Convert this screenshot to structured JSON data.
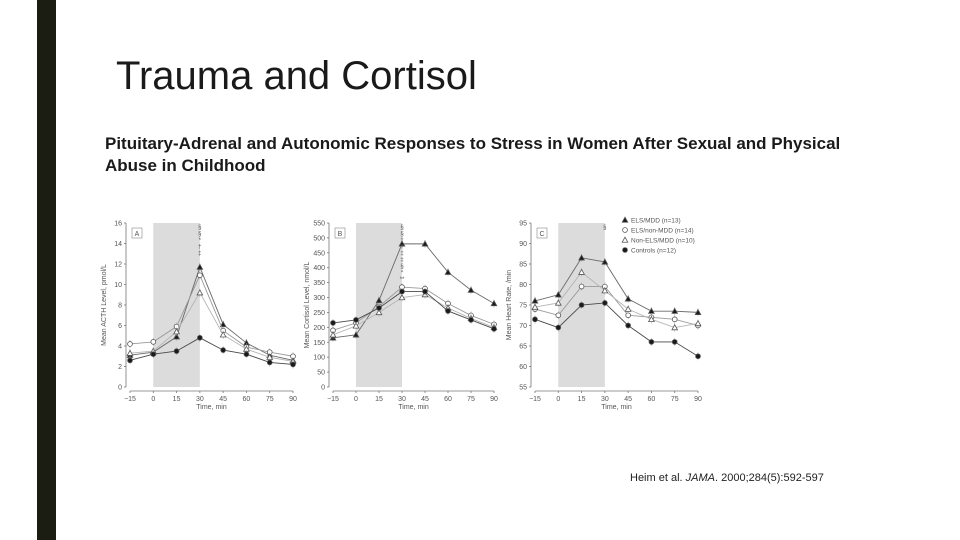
{
  "slide": {
    "title": "Trauma and Cortisol",
    "subtitle": "Pituitary-Adrenal and Autonomic Responses to Stress in Women After Sexual and Physical Abuse in Childhood",
    "citation_authors": "Heim et al.",
    "citation_journal": "JAMA",
    "citation_details": ". 2000;284(5):592-597"
  },
  "chart_data": [
    {
      "type": "line",
      "panel": "A",
      "xlabel": "Time, min",
      "ylabel": "Mean ACTH Level, pmol/L",
      "x": [
        -15,
        0,
        15,
        30,
        45,
        60,
        75,
        90
      ],
      "xticks": [
        "−15",
        "0",
        "15",
        "30",
        "45",
        "60",
        "75",
        "90"
      ],
      "ylim": [
        0,
        16
      ],
      "yticks": [
        0,
        2,
        4,
        6,
        8,
        10,
        12,
        14,
        16
      ],
      "stress_window": [
        0,
        30
      ],
      "series": [
        {
          "name": "ELS/MDD (n=13)",
          "marker": "triangle",
          "values": [
            3.1,
            3.4,
            4.9,
            11.7,
            6.1,
            4.3,
            3.1,
            2.6
          ]
        },
        {
          "name": "ELS/non-MDD (n=14)",
          "marker": "circle-open",
          "values": [
            4.2,
            4.4,
            5.9,
            10.9,
            5.5,
            3.9,
            3.4,
            3.0
          ]
        },
        {
          "name": "Non-ELS/MDD (n=10)",
          "marker": "triangle-open",
          "values": [
            3.3,
            3.5,
            5.4,
            9.2,
            5.1,
            3.7,
            2.9,
            2.5
          ]
        },
        {
          "name": "Controls (n=12)",
          "marker": "circle",
          "values": [
            2.6,
            3.2,
            3.5,
            4.8,
            3.6,
            3.2,
            2.4,
            2.2
          ]
        }
      ],
      "annotations": [
        "§",
        "§",
        "*",
        "†",
        "‡"
      ]
    },
    {
      "type": "line",
      "panel": "B",
      "xlabel": "Time, min",
      "ylabel": "Mean Cortisol Level, nmol/L",
      "x": [
        -15,
        0,
        15,
        30,
        45,
        60,
        75,
        90
      ],
      "xticks": [
        "−15",
        "0",
        "15",
        "30",
        "45",
        "60",
        "75",
        "90"
      ],
      "ylim": [
        0,
        550
      ],
      "yticks": [
        0,
        50,
        100,
        150,
        200,
        250,
        300,
        350,
        400,
        450,
        500,
        550
      ],
      "stress_window": [
        0,
        30
      ],
      "series": [
        {
          "name": "ELS/MDD (n=13)",
          "marker": "triangle",
          "values": [
            165,
            175,
            290,
            480,
            480,
            385,
            325,
            280
          ]
        },
        {
          "name": "ELS/non-MDD (n=14)",
          "marker": "circle-open",
          "values": [
            190,
            215,
            270,
            335,
            330,
            280,
            240,
            210
          ]
        },
        {
          "name": "Non-ELS/MDD (n=10)",
          "marker": "triangle-open",
          "values": [
            175,
            205,
            250,
            300,
            310,
            265,
            230,
            200
          ]
        },
        {
          "name": "Controls (n=12)",
          "marker": "circle",
          "values": [
            215,
            225,
            265,
            320,
            320,
            255,
            225,
            195
          ]
        }
      ],
      "annotations": [
        "§",
        "§",
        "†",
        "†",
        "‡",
        "‡",
        "§",
        "*",
        "**"
      ]
    },
    {
      "type": "line",
      "panel": "C",
      "xlabel": "Time, min",
      "ylabel": "Mean Heart Rate, /min",
      "x": [
        -15,
        0,
        15,
        30,
        45,
        60,
        75,
        90
      ],
      "xticks": [
        "−15",
        "0",
        "15",
        "30",
        "45",
        "60",
        "75",
        "90"
      ],
      "ylim": [
        55,
        95
      ],
      "yticks": [
        55,
        60,
        65,
        70,
        75,
        80,
        85,
        90,
        95
      ],
      "stress_window": [
        0,
        30
      ],
      "series": [
        {
          "name": "ELS/MDD (n=13)",
          "marker": "triangle",
          "values": [
            76,
            77.5,
            86.5,
            85.5,
            76.5,
            73.5,
            73.5,
            73.2
          ]
        },
        {
          "name": "ELS/non-MDD (n=14)",
          "marker": "circle-open",
          "values": [
            74,
            72.5,
            79.5,
            79.5,
            72.5,
            72,
            71.5,
            70
          ]
        },
        {
          "name": "Non-ELS/MDD (n=10)",
          "marker": "triangle-open",
          "values": [
            74.5,
            75.5,
            83,
            78.5,
            74,
            71.5,
            69.5,
            70.5
          ]
        },
        {
          "name": "Controls (n=12)",
          "marker": "circle",
          "values": [
            71.5,
            69.5,
            75,
            75.5,
            70,
            66,
            66,
            62.5
          ]
        }
      ],
      "annotations": [
        "§"
      ]
    }
  ]
}
